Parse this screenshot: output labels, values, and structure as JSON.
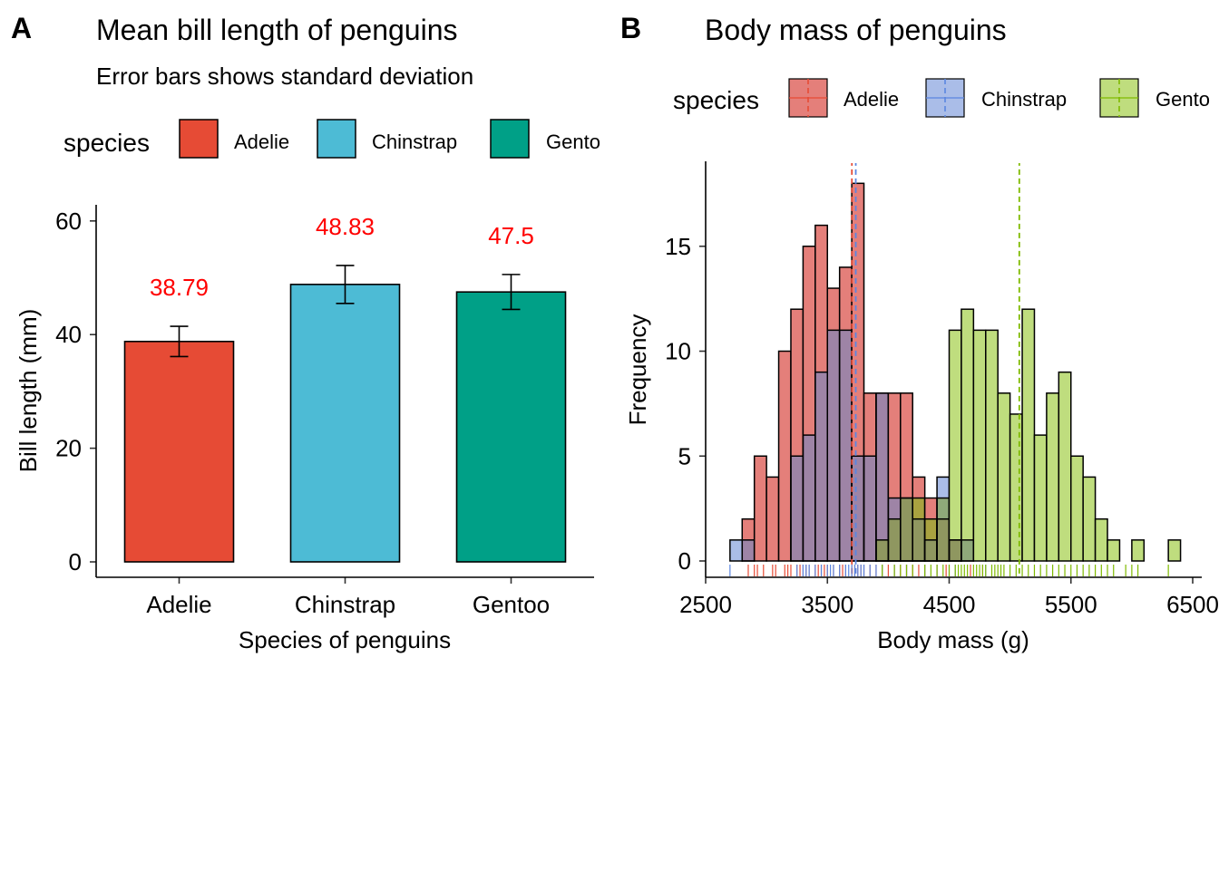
{
  "panels": {
    "a": {
      "letter": "A",
      "title": "Mean bill length of penguins",
      "subtitle": "Error bars shows standard deviation",
      "legend_title": "species"
    },
    "b": {
      "letter": "B",
      "title": "Body mass of penguins",
      "legend_title": "species"
    }
  },
  "chart_data": [
    {
      "type": "bar",
      "title": "Mean bill length of penguins",
      "subtitle": "Error bars shows standard deviation",
      "xlabel": "Species of penguins",
      "ylabel": "Bill length (mm)",
      "categories": [
        "Adelie",
        "Chinstrap",
        "Gentoo"
      ],
      "values": [
        38.79,
        48.83,
        47.5
      ],
      "sd": [
        2.66,
        3.34,
        3.08
      ],
      "data_labels": [
        "38.79",
        "48.83",
        "47.5"
      ],
      "data_label_color": "#FF0000",
      "colors": [
        "#E64B35",
        "#4DBBD5",
        "#00A087"
      ],
      "ylim": [
        0,
        62
      ],
      "yticks": [
        0,
        20,
        40,
        60
      ],
      "legend": {
        "title": "species",
        "position": "top",
        "entries": [
          "Adelie",
          "Chinstrap",
          "Gento"
        ]
      },
      "grid": false
    },
    {
      "type": "histogram",
      "title": "Body mass of penguins",
      "xlabel": "Body mass (g)",
      "ylabel": "Frequency",
      "bin_width": 100,
      "bin_starts": [
        2700,
        2800,
        2900,
        3000,
        3100,
        3200,
        3300,
        3400,
        3500,
        3600,
        3700,
        3800,
        3900,
        4000,
        4100,
        4200,
        4300,
        4400,
        4500,
        4600,
        4700,
        4800,
        4900,
        5000,
        5100,
        5200,
        5300,
        5400,
        5500,
        5600,
        5700,
        5800,
        5900,
        6000,
        6100,
        6200,
        6300
      ],
      "series": [
        {
          "name": "Adelie",
          "color": "#E64B35",
          "fill": "#e47f7a",
          "mean": 3701,
          "counts": [
            0,
            2,
            5,
            4,
            10,
            12,
            15,
            16,
            13,
            14,
            18,
            8,
            8,
            8,
            8,
            4,
            3,
            2,
            1,
            0,
            0,
            0,
            0,
            0,
            0,
            0,
            0,
            0,
            0,
            0,
            0,
            0,
            0,
            0,
            0,
            0,
            0
          ]
        },
        {
          "name": "Chinstrap",
          "color": "#5A86E0",
          "fill": "#aabde8",
          "mean": 3733,
          "counts": [
            1,
            1,
            0,
            0,
            0,
            5,
            6,
            9,
            11,
            11,
            5,
            5,
            8,
            3,
            3,
            2,
            1,
            4,
            1,
            1,
            0,
            0,
            0,
            0,
            0,
            0,
            0,
            0,
            0,
            0,
            0,
            0,
            0,
            0,
            0,
            0,
            0
          ]
        },
        {
          "name": "Gentoo",
          "color": "#7FBA00",
          "fill": "#bfdd7e",
          "mean": 5076,
          "counts": [
            0,
            0,
            0,
            0,
            0,
            0,
            0,
            0,
            0,
            0,
            0,
            0,
            1,
            2,
            3,
            3,
            2,
            3,
            11,
            12,
            11,
            11,
            8,
            7,
            12,
            6,
            8,
            9,
            5,
            4,
            2,
            1,
            0,
            1,
            0,
            0,
            1
          ]
        }
      ],
      "overlap_fills": {
        "adelie_chinstrap": "#9e84a6",
        "adelie_gentoo": "#a9a240",
        "chinstrap_gentoo": "#8fa97a",
        "all": "#8f9760"
      },
      "rugs": {
        "Adelie": [
          2850,
          2900,
          2925,
          2975,
          3050,
          3075,
          3150,
          3175,
          3200,
          3250,
          3275,
          3300,
          3325,
          3350,
          3400,
          3425,
          3450,
          3475,
          3500,
          3550,
          3600,
          3625,
          3650,
          3700,
          3725,
          3750,
          3775,
          3800,
          3850,
          3900,
          3950,
          4000,
          4050,
          4100,
          4150,
          4200,
          4250,
          4300,
          4400,
          4475,
          4675,
          4775
        ],
        "Chinstrap": [
          2700,
          3250,
          3300,
          3325,
          3350,
          3400,
          3450,
          3500,
          3525,
          3550,
          3600,
          3650,
          3675,
          3700,
          3725,
          3750,
          3775,
          3800,
          3850,
          3900,
          3950,
          4050,
          4150,
          4300,
          4400,
          4500,
          4550,
          4800
        ],
        "Gentoo": [
          3950,
          4050,
          4100,
          4150,
          4200,
          4300,
          4350,
          4400,
          4450,
          4500,
          4550,
          4575,
          4600,
          4625,
          4650,
          4700,
          4725,
          4750,
          4775,
          4800,
          4850,
          4875,
          4900,
          4925,
          4950,
          5000,
          5050,
          5100,
          5150,
          5200,
          5250,
          5300,
          5350,
          5400,
          5450,
          5500,
          5550,
          5600,
          5650,
          5700,
          5750,
          5800,
          5850,
          5950,
          6000,
          6050,
          6300
        ]
      },
      "xlim": [
        2500,
        6500
      ],
      "xticks": [
        2500,
        3500,
        4500,
        5500,
        6500
      ],
      "ylim": [
        -0.6,
        18.6
      ],
      "yticks": [
        0,
        5,
        10,
        15
      ],
      "legend": {
        "title": "species",
        "position": "top",
        "entries": [
          "Adelie",
          "Chinstrap",
          "Gento"
        ]
      },
      "grid": false
    }
  ]
}
